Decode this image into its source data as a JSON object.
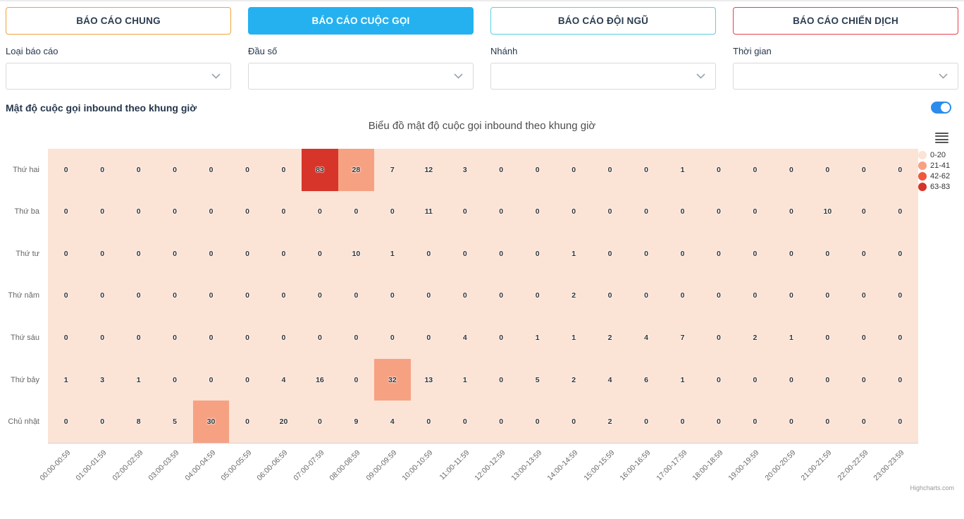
{
  "tabs": [
    {
      "label": "BÁO CÁO CHUNG",
      "active": false,
      "accent": "#f0a43c"
    },
    {
      "label": "BÁO CÁO CUỘC GỌI",
      "active": true,
      "accent": "#25b1f0"
    },
    {
      "label": "BÁO CÁO ĐỘI NGŨ",
      "active": false,
      "accent": "#5ad0dc"
    },
    {
      "label": "BÁO CÁO CHIẾN DỊCH",
      "active": false,
      "accent": "#e8404e"
    }
  ],
  "filters": [
    {
      "label": "Loại báo cáo",
      "value": ""
    },
    {
      "label": "Đầu số",
      "value": ""
    },
    {
      "label": "Nhánh",
      "value": ""
    },
    {
      "label": "Thời gian",
      "value": ""
    }
  ],
  "section": {
    "title": "Mật độ cuộc gọi inbound theo khung giờ",
    "toggle_on": true,
    "toggle_color": "#2b8ced"
  },
  "chart_data": {
    "type": "heatmap",
    "title": "Biểu đồ mật độ cuộc gọi inbound theo khung giờ",
    "credit": "Highcharts.com",
    "legend_position": "right",
    "x_label_rotation": -45,
    "rows": [
      "Thứ hai",
      "Thứ ba",
      "Thứ tư",
      "Thứ năm",
      "Thứ sáu",
      "Thứ bảy",
      "Chủ nhật"
    ],
    "columns": [
      "00:00-00:59",
      "01:00-01:59",
      "02:00-02:59",
      "03:00-03:59",
      "04:00-04:59",
      "05:00-05:59",
      "06:00-06:59",
      "07:00-07:59",
      "08:00-08:59",
      "09:00-09:59",
      "10:00-10:59",
      "11:00-11:59",
      "12:00-12:59",
      "13:00-13:59",
      "14:00-14:59",
      "15:00-15:59",
      "16:00-16:59",
      "17:00-17:59",
      "18:00-18:59",
      "19:00-19:59",
      "20:00-20:59",
      "21:00-21:59",
      "22:00-22:59",
      "23:00-23:59"
    ],
    "values": [
      [
        0,
        0,
        0,
        0,
        0,
        0,
        0,
        83,
        28,
        7,
        12,
        3,
        0,
        0,
        0,
        0,
        0,
        1,
        0,
        0,
        0,
        0,
        0,
        0
      ],
      [
        0,
        0,
        0,
        0,
        0,
        0,
        0,
        0,
        0,
        0,
        11,
        0,
        0,
        0,
        0,
        0,
        0,
        0,
        0,
        0,
        0,
        10,
        0,
        0
      ],
      [
        0,
        0,
        0,
        0,
        0,
        0,
        0,
        0,
        10,
        1,
        0,
        0,
        0,
        0,
        1,
        0,
        0,
        0,
        0,
        0,
        0,
        0,
        0,
        0
      ],
      [
        0,
        0,
        0,
        0,
        0,
        0,
        0,
        0,
        0,
        0,
        0,
        0,
        0,
        0,
        2,
        0,
        0,
        0,
        0,
        0,
        0,
        0,
        0,
        0
      ],
      [
        0,
        0,
        0,
        0,
        0,
        0,
        0,
        0,
        0,
        0,
        0,
        4,
        0,
        1,
        1,
        2,
        4,
        7,
        0,
        2,
        1,
        0,
        0,
        0
      ],
      [
        1,
        3,
        1,
        0,
        0,
        0,
        4,
        16,
        0,
        32,
        13,
        1,
        0,
        5,
        2,
        4,
        6,
        1,
        0,
        0,
        0,
        0,
        0,
        0
      ],
      [
        0,
        0,
        8,
        5,
        30,
        0,
        20,
        0,
        9,
        4,
        0,
        0,
        0,
        0,
        0,
        2,
        0,
        0,
        0,
        0,
        0,
        0,
        0,
        0
      ]
    ],
    "classes": [
      {
        "label": "0-20",
        "from": 0,
        "to": 20,
        "color": "#fbe3d6"
      },
      {
        "label": "21-41",
        "from": 21,
        "to": 41,
        "color": "#f7a183"
      },
      {
        "label": "42-62",
        "from": 42,
        "to": 62,
        "color": "#f0593c"
      },
      {
        "label": "63-83",
        "from": 63,
        "to": 83,
        "color": "#d7342a"
      }
    ]
  }
}
